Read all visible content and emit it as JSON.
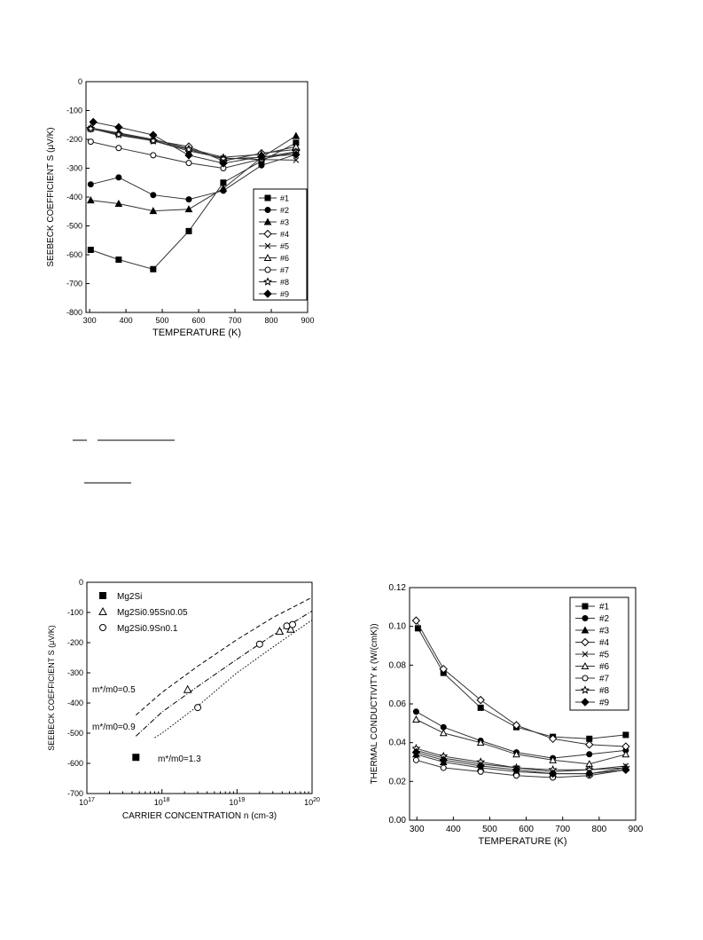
{
  "chart_data": [
    {
      "id": "seebeck_vs_temperature",
      "type": "line",
      "xlabel": "TEMPERATURE (K)",
      "ylabel": "SEEBECK COEFFICIENT S (μV/K)",
      "xlim": [
        290,
        900
      ],
      "ylim": [
        -800,
        0
      ],
      "xticks": [
        300,
        400,
        500,
        600,
        700,
        800,
        900
      ],
      "yticks": [
        0,
        -100,
        -200,
        -300,
        -400,
        -500,
        -600,
        -700,
        -800
      ],
      "legend_position": "bottom-right",
      "grid": false,
      "series": [
        {
          "name": "#1",
          "marker": "square-filled",
          "x": [
            303,
            380,
            475,
            573,
            668,
            773,
            868
          ],
          "y": [
            -583,
            -617,
            -650,
            -518,
            -350,
            -275,
            -212
          ]
        },
        {
          "name": "#2",
          "marker": "circle-filled",
          "x": [
            303,
            380,
            475,
            573,
            668,
            773,
            868
          ],
          "y": [
            -356,
            -332,
            -393,
            -408,
            -378,
            -290,
            -253
          ]
        },
        {
          "name": "#3",
          "marker": "triangle-filled",
          "x": [
            303,
            380,
            475,
            573,
            668,
            773,
            868
          ],
          "y": [
            -411,
            -423,
            -448,
            -442,
            -370,
            -263,
            -188
          ]
        },
        {
          "name": "#4",
          "marker": "diamond-open",
          "x": [
            303,
            380,
            475,
            573,
            668,
            773,
            868
          ],
          "y": [
            -163,
            -180,
            -203,
            -225,
            -275,
            -248,
            -235
          ]
        },
        {
          "name": "#5",
          "marker": "cross",
          "x": [
            303,
            380,
            475,
            573,
            668,
            773,
            868
          ],
          "y": [
            -162,
            -186,
            -205,
            -240,
            -265,
            -270,
            -272
          ]
        },
        {
          "name": "#6",
          "marker": "triangle-open",
          "x": [
            303,
            380,
            475,
            573,
            668,
            773,
            868
          ],
          "y": [
            -160,
            -178,
            -200,
            -232,
            -262,
            -252,
            -225
          ]
        },
        {
          "name": "#7",
          "marker": "circle-open",
          "x": [
            303,
            380,
            475,
            573,
            668,
            773,
            868
          ],
          "y": [
            -208,
            -230,
            -255,
            -282,
            -300,
            -268,
            -245
          ]
        },
        {
          "name": "#8",
          "marker": "star-open",
          "x": [
            303,
            380,
            475,
            573,
            668,
            773,
            868
          ],
          "y": [
            -163,
            -183,
            -205,
            -235,
            -268,
            -262,
            -243
          ]
        },
        {
          "name": "#9",
          "marker": "diamond-filled",
          "x": [
            310,
            380,
            475,
            573,
            668,
            773,
            868
          ],
          "y": [
            -140,
            -158,
            -185,
            -255,
            -283,
            -260,
            -253
          ]
        }
      ]
    },
    {
      "id": "seebeck_vs_carrier_concentration",
      "type": "scatter",
      "xscale": "log",
      "xlabel": "CARRIER CONCENTRATION n (cm-3)",
      "ylabel": "SEEBECK COEFFICIENT S (μV/K)",
      "xlim": [
        1e+17,
        1e+20
      ],
      "ylim": [
        -700,
        0
      ],
      "xtick_labels": [
        "10^17",
        "10^18",
        "10^19",
        "10^20"
      ],
      "yticks": [
        0,
        -100,
        -200,
        -300,
        -400,
        -500,
        -600,
        -700
      ],
      "legend_position": "top-left",
      "grid": false,
      "series": [
        {
          "name": "Mg2Si",
          "marker": "square-filled",
          "x": [
            4.5e+17
          ],
          "y": [
            -580
          ]
        },
        {
          "name": "Mg2Si0.95Sn0.05",
          "marker": "triangle-open",
          "x": [
            2.2e+18,
            3.7e+19,
            5.2e+19
          ],
          "y": [
            -355,
            -162,
            -155
          ]
        },
        {
          "name": "Mg2Si0.9Sn0.1",
          "marker": "circle-open",
          "x": [
            3e+18,
            2e+19,
            4.6e+19,
            5.5e+19
          ],
          "y": [
            -415,
            -205,
            -145,
            -140
          ]
        }
      ],
      "curves": [
        {
          "label": "m*/m0=0.5",
          "style": "dashed",
          "x": [
            4.5e+17,
            1e+18,
            3e+18,
            1e+19,
            3e+19,
            1e+20
          ],
          "y": [
            -440,
            -365,
            -278,
            -190,
            -117,
            -50
          ]
        },
        {
          "label": "m*/m0=0.9",
          "style": "dash-dot",
          "x": [
            4.5e+17,
            1e+18,
            3e+18,
            1e+19,
            3e+19,
            1e+20
          ],
          "y": [
            -510,
            -430,
            -345,
            -255,
            -175,
            -95
          ]
        },
        {
          "label": "m*/m0=1.3",
          "style": "dotted",
          "x": [
            8e+17,
            1e+18,
            3e+18,
            1e+19,
            3e+19,
            1e+20
          ],
          "y": [
            -515,
            -500,
            -410,
            -300,
            -215,
            -125
          ]
        }
      ]
    },
    {
      "id": "thermal_conductivity_vs_temperature",
      "type": "line",
      "xlabel": "TEMPERATURE (K)",
      "ylabel": "THERMAL CONDUCTIVITY κ (W/(cmK))",
      "xlim": [
        280,
        900
      ],
      "ylim": [
        0,
        0.12
      ],
      "xticks": [
        300,
        400,
        500,
        600,
        700,
        800,
        900
      ],
      "yticks": [
        0.0,
        0.02,
        0.04,
        0.06,
        0.08,
        0.1,
        0.12
      ],
      "legend_position": "top-right",
      "grid": false,
      "series": [
        {
          "name": "#1",
          "marker": "square-filled",
          "x": [
            303,
            373,
            475,
            573,
            673,
            773,
            873
          ],
          "y": [
            0.099,
            0.076,
            0.058,
            0.048,
            0.043,
            0.042,
            0.044
          ]
        },
        {
          "name": "#2",
          "marker": "circle-filled",
          "x": [
            298,
            373,
            475,
            573,
            673,
            773,
            873
          ],
          "y": [
            0.056,
            0.048,
            0.041,
            0.035,
            0.032,
            0.034,
            0.036
          ]
        },
        {
          "name": "#3",
          "marker": "triangle-filled",
          "x": [
            298,
            373,
            475,
            573,
            673,
            773,
            873
          ],
          "y": [
            0.034,
            0.03,
            0.027,
            0.025,
            0.024,
            0.024,
            0.027
          ]
        },
        {
          "name": "#4",
          "marker": "diamond-open",
          "x": [
            298,
            373,
            475,
            573,
            673,
            773,
            873
          ],
          "y": [
            0.103,
            0.078,
            0.062,
            0.049,
            0.042,
            0.039,
            0.038
          ]
        },
        {
          "name": "#5",
          "marker": "cross",
          "x": [
            298,
            373,
            475,
            573,
            673,
            773,
            873
          ],
          "y": [
            0.036,
            0.032,
            0.029,
            0.027,
            0.025,
            0.026,
            0.028
          ]
        },
        {
          "name": "#6",
          "marker": "triangle-open",
          "x": [
            298,
            373,
            475,
            573,
            673,
            773,
            873
          ],
          "y": [
            0.052,
            0.045,
            0.04,
            0.034,
            0.031,
            0.029,
            0.034
          ]
        },
        {
          "name": "#7",
          "marker": "circle-open",
          "x": [
            298,
            373,
            475,
            573,
            673,
            773,
            873
          ],
          "y": [
            0.031,
            0.027,
            0.025,
            0.023,
            0.022,
            0.023,
            0.026
          ]
        },
        {
          "name": "#8",
          "marker": "star-open",
          "x": [
            298,
            373,
            475,
            573,
            673,
            773,
            873
          ],
          "y": [
            0.037,
            0.033,
            0.03,
            0.027,
            0.026,
            0.026,
            0.027
          ]
        },
        {
          "name": "#9",
          "marker": "diamond-filled",
          "x": [
            298,
            373,
            475,
            573,
            673,
            773,
            873
          ],
          "y": [
            0.035,
            0.031,
            0.028,
            0.026,
            0.024,
            0.024,
            0.026
          ]
        }
      ]
    }
  ]
}
